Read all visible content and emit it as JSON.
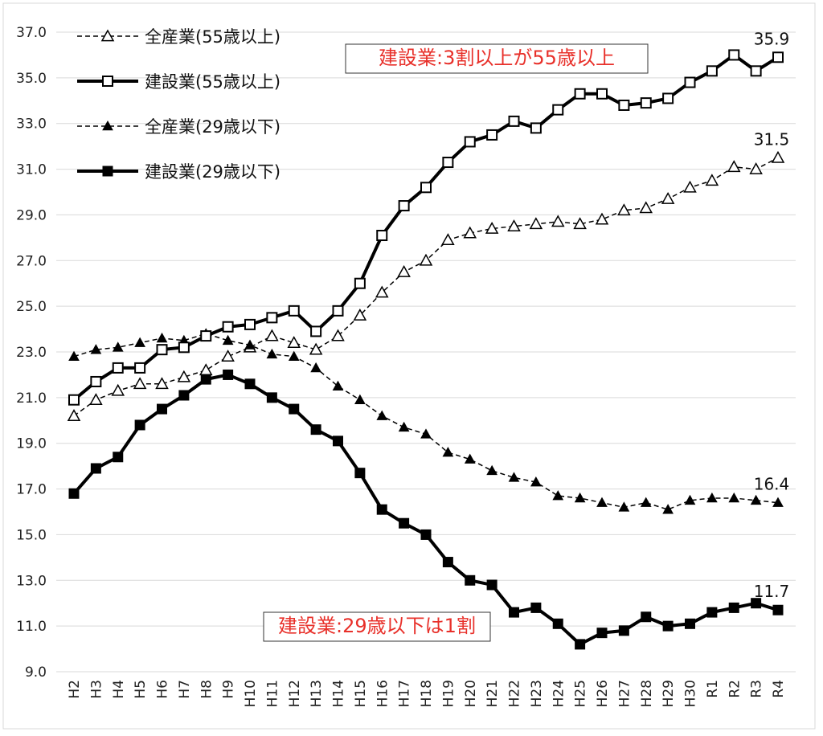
{
  "chart_data": {
    "type": "line",
    "ylim": [
      9.0,
      37.0
    ],
    "y_ticks": [
      "37.0",
      "35.0",
      "33.0",
      "31.0",
      "29.0",
      "27.0",
      "25.0",
      "23.0",
      "21.0",
      "19.0",
      "17.0",
      "15.0",
      "13.0",
      "11.0",
      "9.0"
    ],
    "grid": "horizontal",
    "legend_position": "top-left",
    "categories": [
      "H2",
      "H3",
      "H4",
      "H5",
      "H6",
      "H7",
      "H8",
      "H9",
      "H10",
      "H11",
      "H12",
      "H13",
      "H14",
      "H15",
      "H16",
      "H17",
      "H18",
      "H19",
      "H20",
      "H21",
      "H22",
      "H23",
      "H24",
      "H25",
      "H26",
      "H27",
      "H28",
      "H29",
      "H30",
      "R1",
      "R2",
      "R3",
      "R4"
    ],
    "series": [
      {
        "name": "全産業(55歳以上)",
        "style": "dashed",
        "marker": "open-triangle",
        "values": [
          20.2,
          20.9,
          21.3,
          21.6,
          21.6,
          21.9,
          22.2,
          22.8,
          23.2,
          23.7,
          23.4,
          23.1,
          23.7,
          24.6,
          25.6,
          26.5,
          27.0,
          27.9,
          28.2,
          28.4,
          28.5,
          28.6,
          28.7,
          28.6,
          28.8,
          29.2,
          29.3,
          29.7,
          30.2,
          30.5,
          31.1,
          31.0,
          31.5
        ],
        "end_label": "31.5"
      },
      {
        "name": "建設業(55歳以上)",
        "style": "solid",
        "marker": "open-square",
        "values": [
          20.9,
          21.7,
          22.3,
          22.3,
          23.1,
          23.2,
          23.7,
          24.1,
          24.2,
          24.5,
          24.8,
          23.9,
          24.8,
          26.0,
          28.1,
          29.4,
          30.2,
          31.3,
          32.2,
          32.5,
          33.1,
          32.8,
          33.6,
          34.3,
          34.3,
          33.8,
          33.9,
          34.1,
          34.8,
          35.3,
          36.0,
          35.3,
          35.9
        ],
        "end_label": "35.9"
      },
      {
        "name": "全産業(29歳以下)",
        "style": "dashed",
        "marker": "filled-triangle",
        "values": [
          22.8,
          23.1,
          23.2,
          23.4,
          23.6,
          23.5,
          23.8,
          23.5,
          23.3,
          22.9,
          22.8,
          22.3,
          21.5,
          20.9,
          20.2,
          19.7,
          19.4,
          18.6,
          18.3,
          17.8,
          17.5,
          17.3,
          16.7,
          16.6,
          16.4,
          16.2,
          16.4,
          16.1,
          16.5,
          16.6,
          16.6,
          16.5,
          16.4
        ],
        "end_label": "16.4"
      },
      {
        "name": "建設業(29歳以下)",
        "style": "solid",
        "marker": "filled-square",
        "values": [
          16.8,
          17.9,
          18.4,
          19.8,
          20.5,
          21.1,
          21.8,
          22.0,
          21.6,
          21.0,
          20.5,
          19.6,
          19.1,
          17.7,
          16.1,
          15.5,
          15.0,
          13.8,
          13.0,
          12.8,
          11.6,
          11.8,
          11.1,
          10.2,
          10.7,
          10.8,
          11.4,
          11.0,
          11.1,
          11.6,
          11.8,
          12.0,
          11.7
        ],
        "end_label": "11.7"
      }
    ],
    "annotations": [
      "建設業:3割以上が55歳以上",
      "建設業:29歳以下は1割"
    ],
    "annotation_color": "#e8302a"
  }
}
